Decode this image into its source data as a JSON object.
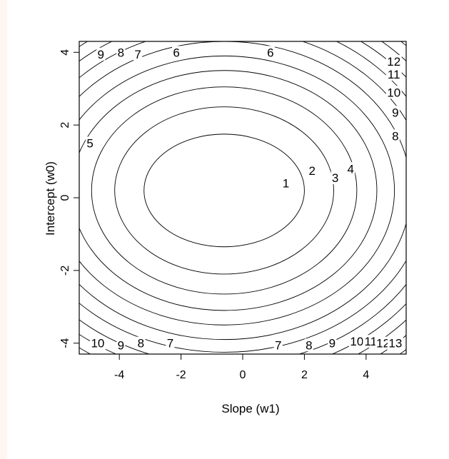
{
  "chart_data": {
    "type": "contour",
    "title": "",
    "xlabel": "Slope (w1)",
    "ylabel": "Intercept (w0)",
    "xlim": [
      -5.3,
      5.3
    ],
    "ylim": [
      -4.3,
      4.3
    ],
    "xticks": [
      -4,
      -2,
      0,
      2,
      4
    ],
    "yticks": [
      -4,
      -2,
      0,
      2,
      4
    ],
    "center": {
      "x": -0.6,
      "y": 0.2
    },
    "levels": [
      {
        "level": 1,
        "rx": 2.6,
        "ry": 1.55
      },
      {
        "level": 2,
        "rx": 3.55,
        "ry": 2.3
      },
      {
        "level": 3,
        "rx": 4.3,
        "ry": 2.85
      },
      {
        "level": 4,
        "rx": 4.95,
        "ry": 3.3
      },
      {
        "level": 5,
        "rx": 5.52,
        "ry": 3.7
      },
      {
        "level": 6,
        "rx": 6.05,
        "ry": 4.1
      },
      {
        "level": 7,
        "rx": 6.55,
        "ry": 4.45
      },
      {
        "level": 8,
        "rx": 7.0,
        "ry": 4.8
      },
      {
        "level": 9,
        "rx": 7.45,
        "ry": 5.1
      },
      {
        "level": 10,
        "rx": 7.85,
        "ry": 5.4
      },
      {
        "level": 11,
        "rx": 8.25,
        "ry": 5.7
      },
      {
        "level": 12,
        "rx": 8.65,
        "ry": 5.98
      },
      {
        "level": 13,
        "rx": 9.0,
        "ry": 6.25
      }
    ],
    "contour_labels": [
      {
        "text": "1",
        "x": 1.4,
        "y": 0.4
      },
      {
        "text": "2",
        "x": 2.25,
        "y": 0.75
      },
      {
        "text": "3",
        "x": 3.0,
        "y": 0.55
      },
      {
        "text": "4",
        "x": 3.5,
        "y": 0.8
      },
      {
        "text": "5",
        "x": -4.95,
        "y": 1.5
      },
      {
        "text": "6",
        "x": -2.15,
        "y": 4.0
      },
      {
        "text": "6",
        "x": 0.9,
        "y": 4.0
      },
      {
        "text": "7",
        "x": -3.4,
        "y": 3.95
      },
      {
        "text": "8",
        "x": -3.95,
        "y": 4.0
      },
      {
        "text": "9",
        "x": -4.6,
        "y": 3.95
      },
      {
        "text": "12",
        "x": 4.9,
        "y": 3.75
      },
      {
        "text": "11",
        "x": 4.9,
        "y": 3.4
      },
      {
        "text": "10",
        "x": 4.9,
        "y": 2.9
      },
      {
        "text": "9",
        "x": 4.95,
        "y": 2.35
      },
      {
        "text": "8",
        "x": 4.95,
        "y": 1.7
      },
      {
        "text": "10",
        "x": -4.7,
        "y": -4.0
      },
      {
        "text": "9",
        "x": -3.95,
        "y": -4.05
      },
      {
        "text": "8",
        "x": -3.3,
        "y": -4.0
      },
      {
        "text": "7",
        "x": -2.35,
        "y": -4.0
      },
      {
        "text": "7",
        "x": 1.15,
        "y": -4.05
      },
      {
        "text": "8",
        "x": 2.15,
        "y": -4.05
      },
      {
        "text": "9",
        "x": 2.9,
        "y": -4.0
      },
      {
        "text": "10",
        "x": 3.7,
        "y": -3.95
      },
      {
        "text": "11",
        "x": 4.15,
        "y": -3.95
      },
      {
        "text": "12",
        "x": 4.55,
        "y": -4.0
      },
      {
        "text": "13",
        "x": 4.95,
        "y": -4.0
      }
    ]
  }
}
